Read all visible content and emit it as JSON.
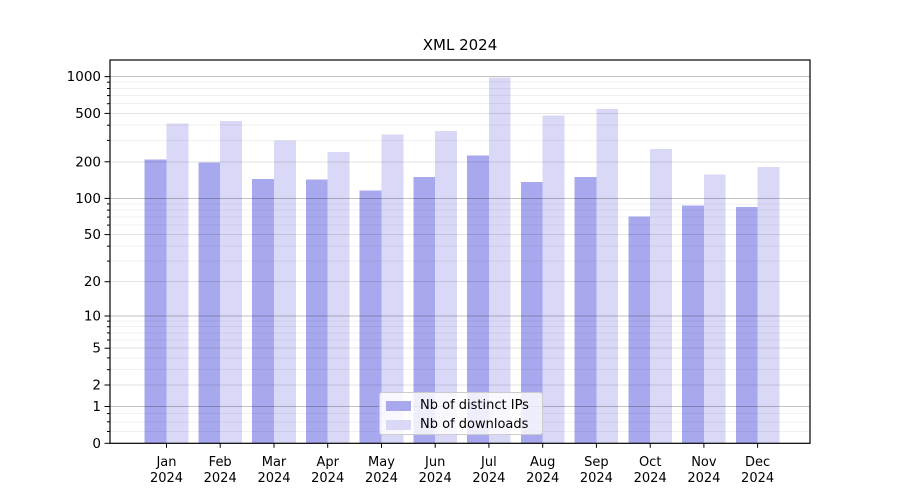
{
  "chart_data": {
    "type": "bar",
    "title": "XML 2024",
    "categories": [
      "Jan",
      "Feb",
      "Mar",
      "Apr",
      "May",
      "Jun",
      "Jul",
      "Aug",
      "Sep",
      "Oct",
      "Nov",
      "Dec"
    ],
    "category_year": "2024",
    "series": [
      {
        "key": "distinct-ips",
        "name": "Nb of distinct IPs",
        "color": "#a8a8ef",
        "values": [
          210,
          198,
          145,
          143,
          116,
          150,
          226,
          136,
          150,
          71,
          87,
          85
        ]
      },
      {
        "key": "downloads",
        "name": "Nb of downloads",
        "color": "#d9d9f7",
        "values": [
          414,
          435,
          299,
          241,
          334,
          360,
          980,
          480,
          545,
          255,
          158,
          182
        ]
      }
    ],
    "y_axis": {
      "scale": "log1p",
      "major_ticks": [
        1000,
        500,
        200,
        100,
        50,
        20,
        10,
        5,
        2,
        1,
        0
      ],
      "decade_ticks": [
        1000,
        100,
        10,
        1
      ],
      "minor_ticks": [
        0.25,
        0.5,
        0.75,
        3,
        4,
        6,
        7,
        8,
        9,
        30,
        40,
        60,
        70,
        80,
        90,
        300,
        400,
        600,
        700,
        800,
        900
      ],
      "ylim": [
        0,
        1368
      ]
    },
    "legend": {
      "position": "lower-center"
    },
    "grid": true
  }
}
